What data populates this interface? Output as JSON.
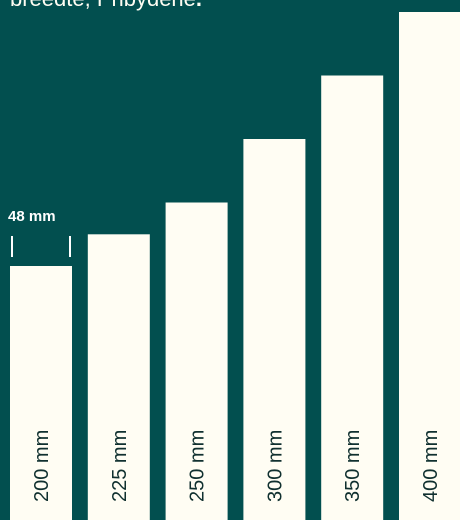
{
  "header": {
    "title_text": "breedte, Pribydene",
    "title_dot": "."
  },
  "chart_data": {
    "type": "bar",
    "categories": [
      "200 mm",
      "225 mm",
      "250 mm",
      "300 mm",
      "350 mm",
      "400 mm"
    ],
    "values": [
      200,
      225,
      250,
      300,
      350,
      400
    ],
    "ylim": [
      0,
      400
    ],
    "annotation": "48 mm",
    "title": "",
    "xlabel": "",
    "ylabel": "",
    "grid": false,
    "colors": {
      "background": "#024f4f",
      "bar": "#fffdf3",
      "label": "#10302f",
      "annotation": "#ffffff"
    }
  }
}
